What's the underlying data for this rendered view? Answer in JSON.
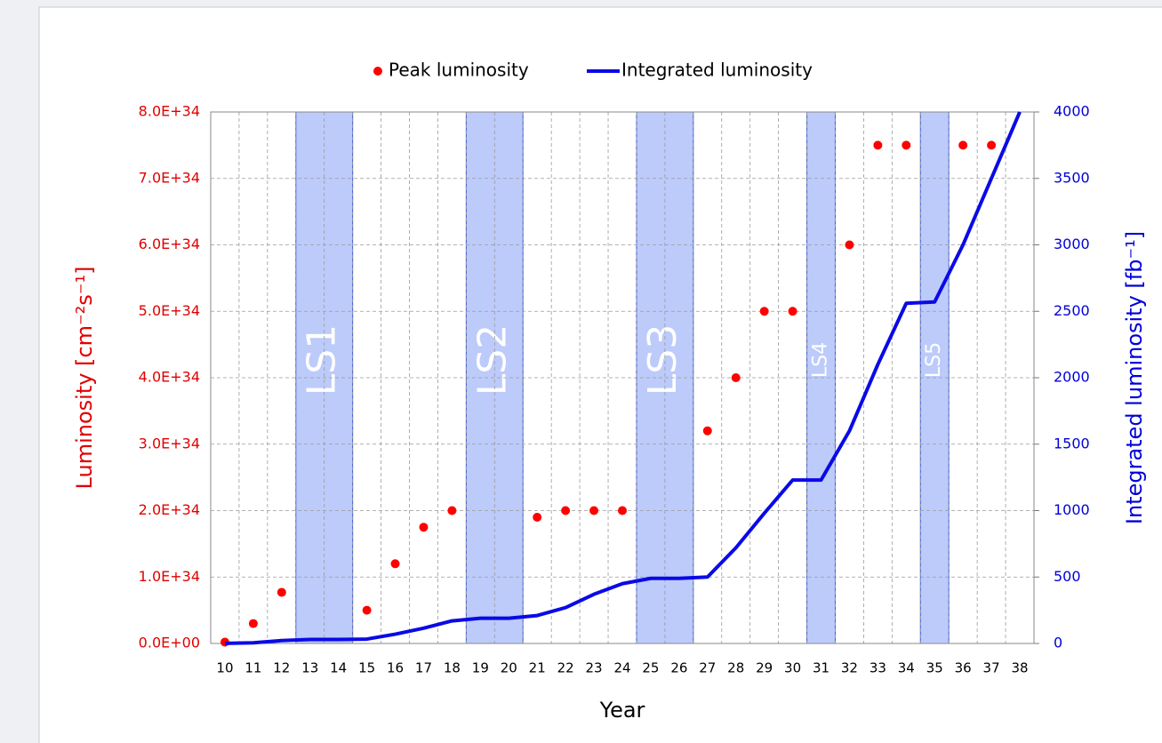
{
  "chart_data": {
    "type": "combo",
    "categories": [
      "10",
      "11",
      "12",
      "13",
      "14",
      "15",
      "16",
      "17",
      "18",
      "19",
      "20",
      "21",
      "22",
      "23",
      "24",
      "25",
      "26",
      "27",
      "28",
      "29",
      "30",
      "31",
      "32",
      "33",
      "34",
      "35",
      "36",
      "37",
      "38"
    ],
    "series": [
      {
        "name": "Peak luminosity",
        "type": "scatter",
        "color": "#ff0000",
        "values": [
          2e+32,
          3e+33,
          7.7e+33,
          null,
          null,
          5e+33,
          1.2e+34,
          1.75e+34,
          2e+34,
          null,
          null,
          1.9e+34,
          2e+34,
          2e+34,
          2e+34,
          null,
          null,
          3.2e+34,
          4e+34,
          5e+34,
          5e+34,
          null,
          6e+34,
          7.5e+34,
          7.5e+34,
          null,
          7.5e+34,
          7.5e+34,
          null
        ]
      },
      {
        "name": "Integrated luminosity",
        "type": "line",
        "color": "#0a0ae6",
        "axis": "y2",
        "values": [
          1,
          5,
          22,
          30,
          30,
          33,
          70,
          115,
          170,
          190,
          190,
          210,
          270,
          370,
          450,
          490,
          490,
          500,
          720,
          980,
          1230,
          1230,
          1600,
          2100,
          2560,
          2570,
          3000,
          3500,
          4000
        ]
      }
    ],
    "shaded_regions": [
      {
        "label": "LS1",
        "from": "13",
        "to": "14"
      },
      {
        "label": "LS2",
        "from": "19",
        "to": "20"
      },
      {
        "label": "LS3",
        "from": "25",
        "to": "26"
      },
      {
        "label": "LS4",
        "from": "31",
        "to": "31"
      },
      {
        "label": "LS5",
        "from": "35",
        "to": "35"
      }
    ],
    "xlabel": "Year",
    "ylabel": "Luminosity [cm⁻²s⁻¹]",
    "y2label": "Integrated luminosity [fb⁻¹]",
    "ylim": [
      0,
      8e+34
    ],
    "yticks": [
      {
        "value": 0,
        "label": "0.0E+00"
      },
      {
        "value": 1e+34,
        "label": "1.0E+34"
      },
      {
        "value": 2e+34,
        "label": "2.0E+34"
      },
      {
        "value": 3e+34,
        "label": "3.0E+34"
      },
      {
        "value": 4e+34,
        "label": "4.0E+34"
      },
      {
        "value": 5e+34,
        "label": "5.0E+34"
      },
      {
        "value": 6e+34,
        "label": "6.0E+34"
      },
      {
        "value": 7e+34,
        "label": "7.0E+34"
      },
      {
        "value": 8e+34,
        "label": "8.0E+34"
      }
    ],
    "y2lim": [
      0,
      4000
    ],
    "y2ticks": [
      0,
      500,
      1000,
      1500,
      2000,
      2500,
      3000,
      3500,
      4000
    ],
    "grid": true,
    "legend": "top"
  }
}
